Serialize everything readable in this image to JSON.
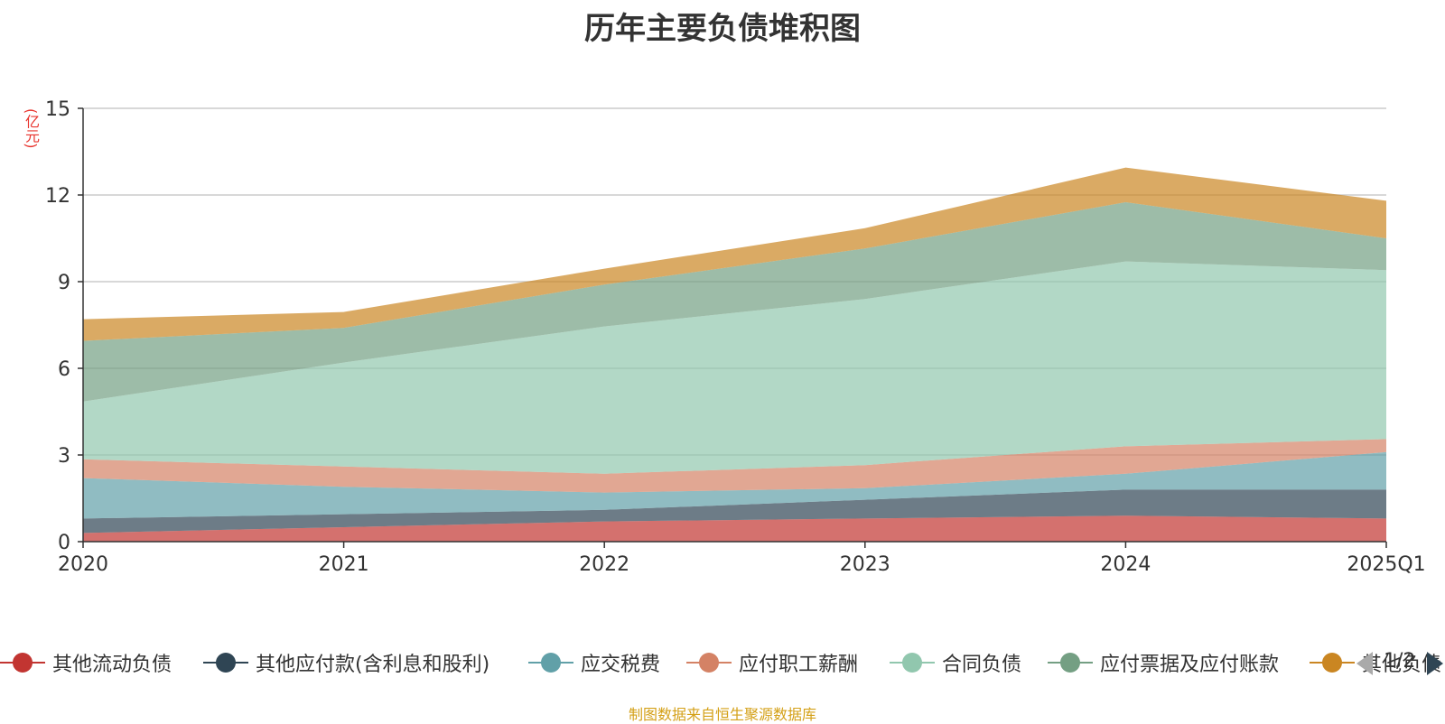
{
  "title": "历年主要负债堆积图",
  "source": "制图数据来自恒生聚源数据库",
  "pager": {
    "text": "1/2"
  },
  "chart_data": {
    "type": "area",
    "stacked": true,
    "title": "历年主要负债堆积图",
    "ylabel": "(亿元)",
    "categories": [
      "2020",
      "2021",
      "2022",
      "2023",
      "2024",
      "2025Q1"
    ],
    "ylim": [
      0,
      15
    ],
    "yticks": [
      0,
      3,
      6,
      9,
      12,
      15
    ],
    "grid": true,
    "legend_position": "bottom",
    "series": [
      {
        "name": "其他流动负债",
        "color": "#c23531",
        "values": [
          0.3,
          0.5,
          0.7,
          0.8,
          0.9,
          0.8
        ]
      },
      {
        "name": "其他应付款(含利息和股利)",
        "color": "#2f4554",
        "values": [
          0.5,
          0.45,
          0.4,
          0.65,
          0.9,
          1.0
        ]
      },
      {
        "name": "应交税费",
        "color": "#61a0a8",
        "values": [
          1.4,
          0.95,
          0.6,
          0.4,
          0.55,
          1.3
        ]
      },
      {
        "name": "应付职工薪酬",
        "color": "#d48265",
        "values": [
          0.65,
          0.7,
          0.65,
          0.8,
          0.95,
          0.45
        ]
      },
      {
        "name": "合同负债",
        "color": "#91c7ae",
        "values": [
          2.0,
          3.6,
          5.1,
          5.75,
          6.4,
          5.85
        ]
      },
      {
        "name": "应付票据及应付账款",
        "color": "#749f83",
        "values": [
          2.1,
          1.2,
          1.45,
          1.75,
          2.05,
          1.1
        ]
      },
      {
        "name": "其他负债",
        "color": "#ca8622",
        "values": [
          0.75,
          0.55,
          0.55,
          0.7,
          1.2,
          1.3
        ]
      }
    ]
  }
}
